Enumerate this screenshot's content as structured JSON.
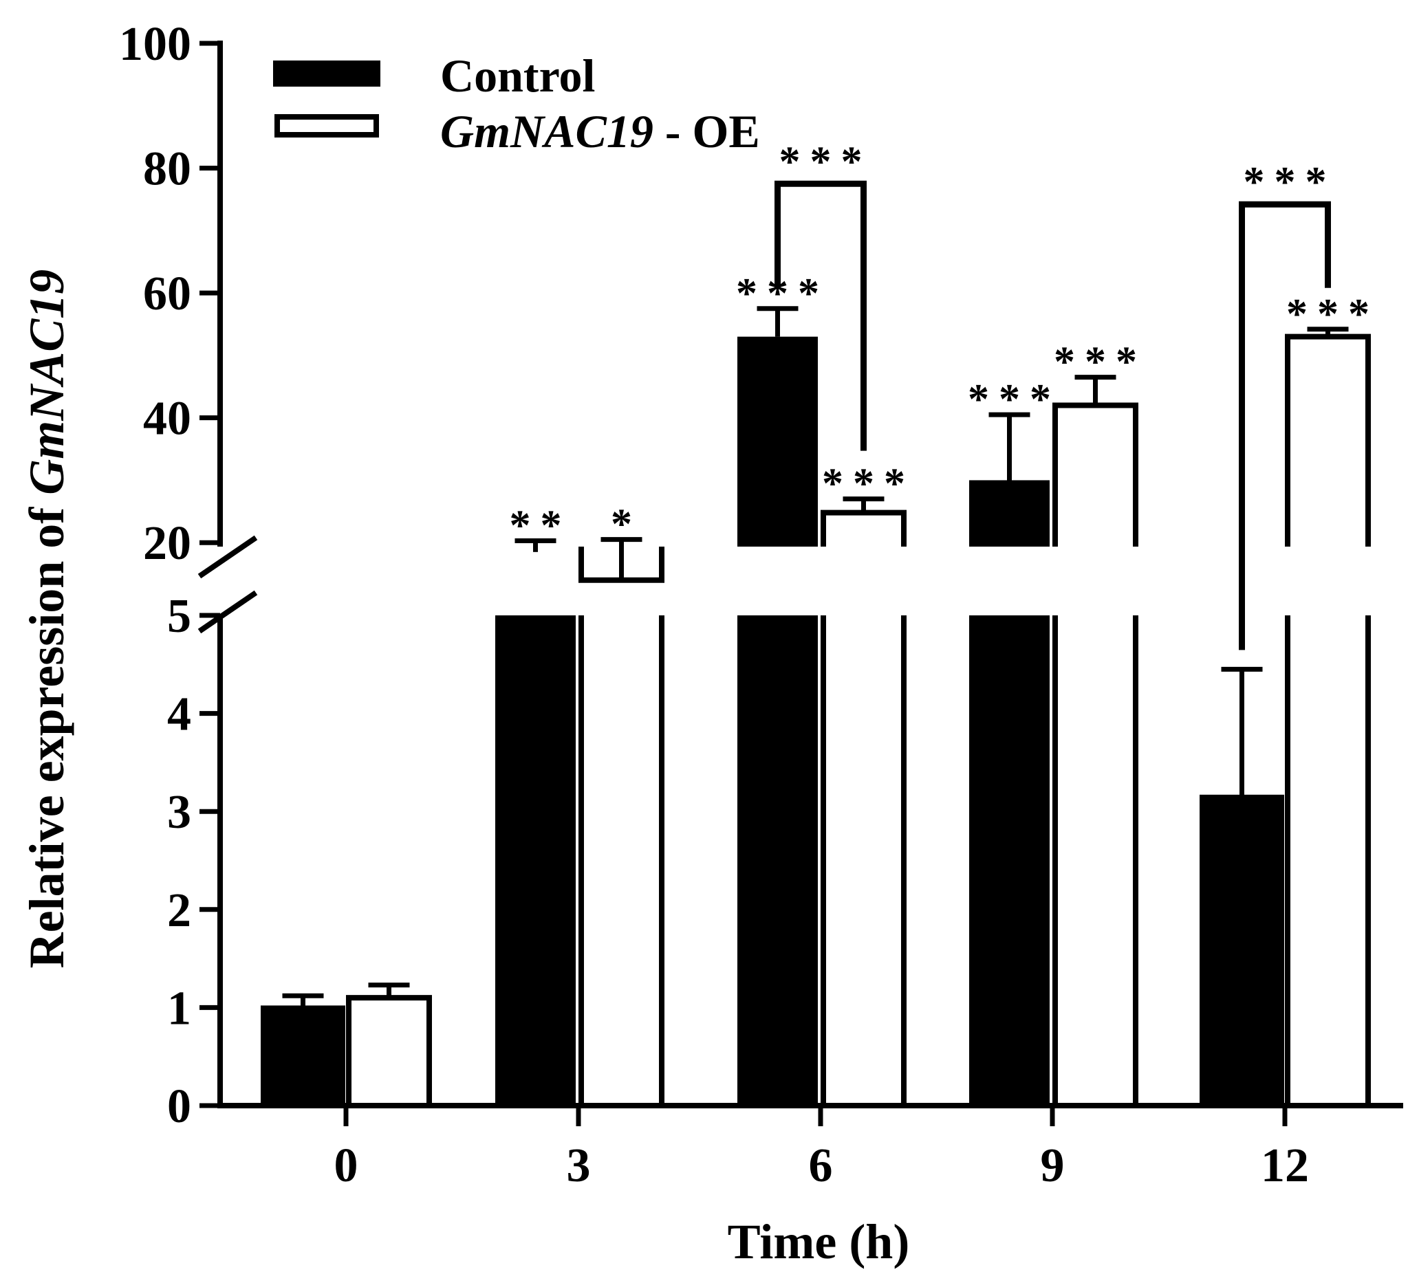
{
  "chart_data": {
    "type": "bar",
    "xlabel": "Time (h)",
    "ylabel_prefix": "Relative expression of ",
    "ylabel_gene": "GmNAC19",
    "categories": [
      "0",
      "3",
      "6",
      "9",
      "12"
    ],
    "axis_break": {
      "lower_range": [
        0,
        5
      ],
      "upper_range": [
        10,
        100
      ]
    },
    "lower_ticks": [
      "0",
      "1",
      "2",
      "3",
      "4",
      "5"
    ],
    "upper_ticks": [
      "20",
      "40",
      "60",
      "80",
      "100"
    ],
    "series": [
      {
        "name": "Control",
        "fill": "#000000",
        "values": [
          1.0,
          18.5,
          53.0,
          30.0,
          3.15
        ],
        "errors": [
          0.12,
          1.8,
          4.5,
          10.5,
          1.3
        ]
      },
      {
        "name": "GmNAC19 - OE",
        "legend_gene": "GmNAC19",
        "legend_suffix": " - OE",
        "fill": "#ffffff",
        "values": [
          1.1,
          14.0,
          24.8,
          42.0,
          53.0
        ],
        "errors": [
          0.13,
          6.5,
          2.2,
          4.5,
          1.2
        ]
      }
    ],
    "significance": [
      {
        "category": "3",
        "series": 0,
        "label": "**"
      },
      {
        "category": "3",
        "series": 1,
        "label": "*"
      },
      {
        "category": "6",
        "series": 0,
        "label": "***"
      },
      {
        "category": "6",
        "series": 1,
        "label": "***"
      },
      {
        "category": "9",
        "series": 0,
        "label": "***"
      },
      {
        "category": "9",
        "series": 1,
        "label": "***"
      },
      {
        "category": "12",
        "series": 1,
        "label": "***"
      }
    ],
    "comparisons": [
      {
        "category": "6",
        "label": "***"
      },
      {
        "category": "12",
        "label": "***"
      }
    ],
    "legend_position": "top-left"
  }
}
